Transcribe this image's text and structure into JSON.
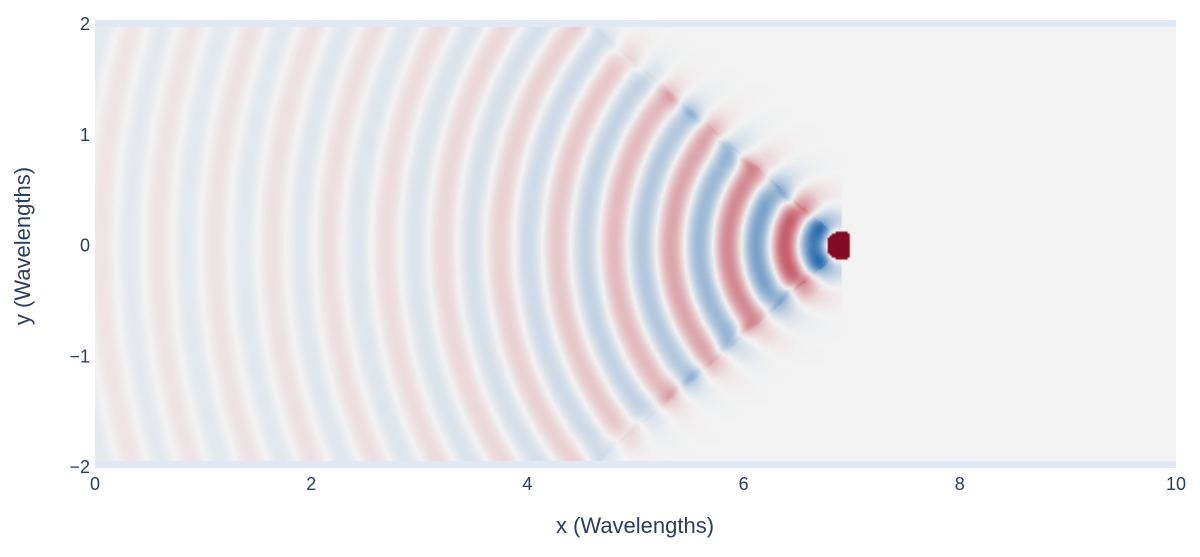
{
  "chart_data": {
    "type": "heatmap",
    "title": "",
    "xlabel": "x (Wavelengths)",
    "ylabel": "y (Wavelengths)",
    "xlim": [
      0,
      10
    ],
    "ylim": [
      -2,
      2
    ],
    "x_ticks": [
      0,
      2,
      4,
      6,
      8,
      10
    ],
    "y_ticks": [
      -2,
      -1,
      0,
      1,
      2
    ],
    "x_tick_labels": [
      "0",
      "2",
      "4",
      "6",
      "8",
      "10"
    ],
    "y_tick_labels": [
      "−2",
      "−1",
      "0",
      "1",
      "2"
    ],
    "colorscale": "RdBu (diverging, red positive / blue negative)",
    "source": {
      "x": 6.9,
      "y": 0.0
    },
    "cone_half_slope": 0.85,
    "wavelength": 1.0,
    "background_color": "#f3f3f3",
    "positive_color": "#b2182b",
    "negative_color": "#2166ac",
    "peak_color": "#67001f"
  }
}
